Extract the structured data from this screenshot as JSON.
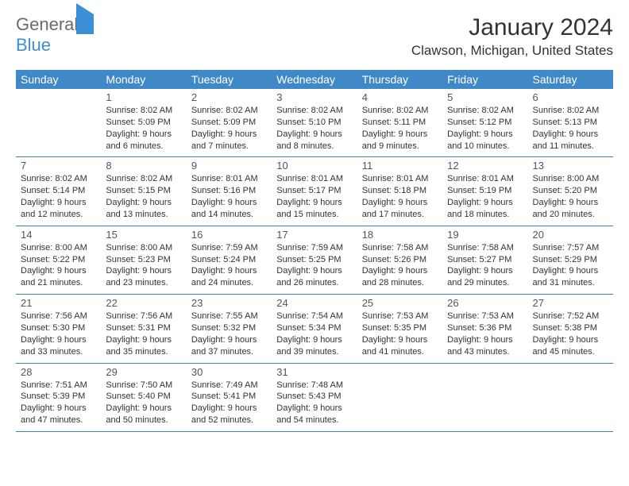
{
  "logo": {
    "part1": "General",
    "part2": "Blue"
  },
  "title": "January 2024",
  "location": "Clawson, Michigan, United States",
  "colors": {
    "header_bg": "#4089c8",
    "header_text": "#ffffff",
    "border": "#3b7fb8",
    "accent": "#3b8fd5"
  },
  "day_headers": [
    "Sunday",
    "Monday",
    "Tuesday",
    "Wednesday",
    "Thursday",
    "Friday",
    "Saturday"
  ],
  "weeks": [
    [
      null,
      {
        "n": "1",
        "sunrise": "8:02 AM",
        "sunset": "5:09 PM",
        "daylight": "9 hours and 6 minutes."
      },
      {
        "n": "2",
        "sunrise": "8:02 AM",
        "sunset": "5:09 PM",
        "daylight": "9 hours and 7 minutes."
      },
      {
        "n": "3",
        "sunrise": "8:02 AM",
        "sunset": "5:10 PM",
        "daylight": "9 hours and 8 minutes."
      },
      {
        "n": "4",
        "sunrise": "8:02 AM",
        "sunset": "5:11 PM",
        "daylight": "9 hours and 9 minutes."
      },
      {
        "n": "5",
        "sunrise": "8:02 AM",
        "sunset": "5:12 PM",
        "daylight": "9 hours and 10 minutes."
      },
      {
        "n": "6",
        "sunrise": "8:02 AM",
        "sunset": "5:13 PM",
        "daylight": "9 hours and 11 minutes."
      }
    ],
    [
      {
        "n": "7",
        "sunrise": "8:02 AM",
        "sunset": "5:14 PM",
        "daylight": "9 hours and 12 minutes."
      },
      {
        "n": "8",
        "sunrise": "8:02 AM",
        "sunset": "5:15 PM",
        "daylight": "9 hours and 13 minutes."
      },
      {
        "n": "9",
        "sunrise": "8:01 AM",
        "sunset": "5:16 PM",
        "daylight": "9 hours and 14 minutes."
      },
      {
        "n": "10",
        "sunrise": "8:01 AM",
        "sunset": "5:17 PM",
        "daylight": "9 hours and 15 minutes."
      },
      {
        "n": "11",
        "sunrise": "8:01 AM",
        "sunset": "5:18 PM",
        "daylight": "9 hours and 17 minutes."
      },
      {
        "n": "12",
        "sunrise": "8:01 AM",
        "sunset": "5:19 PM",
        "daylight": "9 hours and 18 minutes."
      },
      {
        "n": "13",
        "sunrise": "8:00 AM",
        "sunset": "5:20 PM",
        "daylight": "9 hours and 20 minutes."
      }
    ],
    [
      {
        "n": "14",
        "sunrise": "8:00 AM",
        "sunset": "5:22 PM",
        "daylight": "9 hours and 21 minutes."
      },
      {
        "n": "15",
        "sunrise": "8:00 AM",
        "sunset": "5:23 PM",
        "daylight": "9 hours and 23 minutes."
      },
      {
        "n": "16",
        "sunrise": "7:59 AM",
        "sunset": "5:24 PM",
        "daylight": "9 hours and 24 minutes."
      },
      {
        "n": "17",
        "sunrise": "7:59 AM",
        "sunset": "5:25 PM",
        "daylight": "9 hours and 26 minutes."
      },
      {
        "n": "18",
        "sunrise": "7:58 AM",
        "sunset": "5:26 PM",
        "daylight": "9 hours and 28 minutes."
      },
      {
        "n": "19",
        "sunrise": "7:58 AM",
        "sunset": "5:27 PM",
        "daylight": "9 hours and 29 minutes."
      },
      {
        "n": "20",
        "sunrise": "7:57 AM",
        "sunset": "5:29 PM",
        "daylight": "9 hours and 31 minutes."
      }
    ],
    [
      {
        "n": "21",
        "sunrise": "7:56 AM",
        "sunset": "5:30 PM",
        "daylight": "9 hours and 33 minutes."
      },
      {
        "n": "22",
        "sunrise": "7:56 AM",
        "sunset": "5:31 PM",
        "daylight": "9 hours and 35 minutes."
      },
      {
        "n": "23",
        "sunrise": "7:55 AM",
        "sunset": "5:32 PM",
        "daylight": "9 hours and 37 minutes."
      },
      {
        "n": "24",
        "sunrise": "7:54 AM",
        "sunset": "5:34 PM",
        "daylight": "9 hours and 39 minutes."
      },
      {
        "n": "25",
        "sunrise": "7:53 AM",
        "sunset": "5:35 PM",
        "daylight": "9 hours and 41 minutes."
      },
      {
        "n": "26",
        "sunrise": "7:53 AM",
        "sunset": "5:36 PM",
        "daylight": "9 hours and 43 minutes."
      },
      {
        "n": "27",
        "sunrise": "7:52 AM",
        "sunset": "5:38 PM",
        "daylight": "9 hours and 45 minutes."
      }
    ],
    [
      {
        "n": "28",
        "sunrise": "7:51 AM",
        "sunset": "5:39 PM",
        "daylight": "9 hours and 47 minutes."
      },
      {
        "n": "29",
        "sunrise": "7:50 AM",
        "sunset": "5:40 PM",
        "daylight": "9 hours and 50 minutes."
      },
      {
        "n": "30",
        "sunrise": "7:49 AM",
        "sunset": "5:41 PM",
        "daylight": "9 hours and 52 minutes."
      },
      {
        "n": "31",
        "sunrise": "7:48 AM",
        "sunset": "5:43 PM",
        "daylight": "9 hours and 54 minutes."
      },
      null,
      null,
      null
    ]
  ]
}
